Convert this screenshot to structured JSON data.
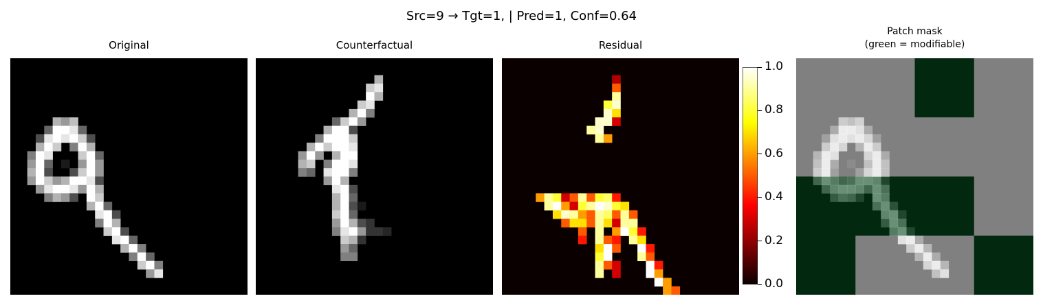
{
  "figure": {
    "suptitle": "Src=9 → Tgt=1, | Pred=1, Conf=0.64"
  },
  "panels": [
    {
      "id": "original",
      "title_lines": [
        "Original"
      ]
    },
    {
      "id": "counterfactual",
      "title_lines": [
        "Counterfactual"
      ]
    },
    {
      "id": "residual",
      "title_lines": [
        "Residual"
      ]
    },
    {
      "id": "mask",
      "title_lines": [
        "Patch mask",
        "(green = modifiable)"
      ]
    }
  ],
  "colorbar": {
    "cmap": "hot",
    "ticks": [
      "0.0",
      "0.2",
      "0.4",
      "0.6",
      "0.8",
      "1.0"
    ],
    "vmin": 0.0,
    "vmax": 1.0
  },
  "chart_data": {
    "type": "heatmap",
    "grid": [
      28,
      28
    ],
    "original": [
      [
        12,
        8,
        0.7
      ],
      [
        12,
        9,
        0.6
      ],
      [
        12,
        10,
        0.75
      ],
      [
        13,
        7,
        0.4
      ],
      [
        13,
        8,
        1
      ],
      [
        13,
        9,
        1
      ],
      [
        13,
        10,
        0.9
      ],
      [
        13,
        11,
        0.4
      ],
      [
        14,
        6,
        0.3
      ],
      [
        14,
        7,
        0.9
      ],
      [
        14,
        8,
        1
      ],
      [
        14,
        9,
        0.9
      ],
      [
        14,
        10,
        1
      ],
      [
        14,
        11,
        0.8
      ],
      [
        14,
        12,
        0.3
      ],
      [
        15,
        6,
        0.7
      ],
      [
        15,
        7,
        1
      ],
      [
        15,
        8,
        0.8
      ],
      [
        15,
        10,
        0.5
      ],
      [
        15,
        11,
        1
      ],
      [
        15,
        12,
        0.7
      ],
      [
        16,
        5,
        0.5
      ],
      [
        16,
        6,
        1
      ],
      [
        16,
        7,
        0.9
      ],
      [
        16,
        11,
        0.8
      ],
      [
        16,
        12,
        1
      ],
      [
        16,
        13,
        0.4
      ],
      [
        17,
        5,
        0.6
      ],
      [
        17,
        6,
        1
      ],
      [
        17,
        7,
        0.4
      ],
      [
        17,
        9,
        0.1
      ],
      [
        17,
        11,
        0.6
      ],
      [
        17,
        12,
        1
      ],
      [
        17,
        13,
        0.6
      ],
      [
        18,
        5,
        0.7
      ],
      [
        18,
        6,
        1
      ],
      [
        18,
        7,
        0.3
      ],
      [
        18,
        10,
        0.3
      ],
      [
        18,
        11,
        0.8
      ],
      [
        18,
        12,
        1
      ],
      [
        18,
        13,
        0.6
      ],
      [
        19,
        5,
        0.6
      ],
      [
        19,
        6,
        1
      ],
      [
        19,
        7,
        0.8
      ],
      [
        19,
        8,
        0.6
      ],
      [
        19,
        9,
        0.7
      ],
      [
        19,
        10,
        1
      ],
      [
        19,
        11,
        1
      ],
      [
        19,
        12,
        0.9
      ],
      [
        19,
        13,
        0.3
      ],
      [
        20,
        6,
        0.6
      ],
      [
        20,
        7,
        0.9
      ],
      [
        20,
        8,
        1
      ],
      [
        20,
        9,
        1
      ],
      [
        20,
        10,
        0.9
      ],
      [
        20,
        11,
        0.6
      ],
      [
        20,
        12,
        1
      ],
      [
        20,
        13,
        0.7
      ],
      [
        21,
        7,
        0.5
      ],
      [
        21,
        8,
        0.7
      ],
      [
        21,
        9,
        0.6
      ],
      [
        21,
        10,
        0.3
      ],
      [
        21,
        12,
        1
      ],
      [
        21,
        13,
        0.8
      ],
      [
        22,
        12,
        0.7
      ],
      [
        22,
        13,
        1
      ],
      [
        22,
        14,
        0.4
      ],
      [
        23,
        13,
        0.9
      ],
      [
        23,
        14,
        1
      ],
      [
        23,
        15,
        0.3
      ],
      [
        24,
        13,
        0.5
      ],
      [
        24,
        14,
        1
      ],
      [
        24,
        15,
        0.7
      ],
      [
        25,
        14,
        0.8
      ],
      [
        25,
        15,
        1
      ],
      [
        25,
        16,
        0.3
      ],
      [
        26,
        15,
        0.9
      ],
      [
        26,
        16,
        1
      ],
      [
        26,
        17,
        0.4
      ],
      [
        27,
        16,
        0.7
      ],
      [
        27,
        17,
        1
      ],
      [
        27,
        18,
        0.5
      ],
      [
        28,
        17,
        0.5
      ],
      [
        28,
        18,
        1
      ],
      [
        28,
        19,
        0.4
      ],
      [
        29,
        18,
        0.8
      ],
      [
        29,
        19,
        1
      ],
      [
        29,
        20,
        0.5
      ],
      [
        30,
        19,
        0.6
      ],
      [
        30,
        20,
        0.9
      ]
    ],
    "counterfactual": [
      [
        7,
        17,
        0.7
      ],
      [
        8,
        16,
        0.8
      ],
      [
        8,
        17,
        0.9
      ],
      [
        9,
        16,
        1
      ],
      [
        9,
        17,
        0.7
      ],
      [
        10,
        15,
        0.8
      ],
      [
        10,
        16,
        0.9
      ],
      [
        11,
        14,
        0.7
      ],
      [
        11,
        15,
        1
      ],
      [
        11,
        16,
        0.5
      ],
      [
        12,
        12,
        0.4
      ],
      [
        12,
        13,
        0.8
      ],
      [
        12,
        14,
        1
      ],
      [
        12,
        15,
        0.6
      ],
      [
        13,
        11,
        0.7
      ],
      [
        13,
        12,
        1
      ],
      [
        13,
        13,
        1
      ],
      [
        13,
        14,
        0.3
      ],
      [
        14,
        10,
        0.5
      ],
      [
        14,
        11,
        1
      ],
      [
        14,
        12,
        1
      ],
      [
        14,
        13,
        1
      ],
      [
        14,
        14,
        0.8
      ],
      [
        15,
        9,
        0.7
      ],
      [
        15,
        10,
        1
      ],
      [
        15,
        11,
        0.8
      ],
      [
        15,
        12,
        1
      ],
      [
        15,
        13,
        1
      ],
      [
        15,
        14,
        0.9
      ],
      [
        16,
        8,
        0.6
      ],
      [
        16,
        9,
        1
      ],
      [
        16,
        10,
        0.6
      ],
      [
        16,
        12,
        0.7
      ],
      [
        16,
        13,
        1
      ],
      [
        16,
        14,
        1
      ],
      [
        17,
        8,
        0.7
      ],
      [
        17,
        9,
        0.8
      ],
      [
        17,
        11,
        0.5
      ],
      [
        17,
        12,
        1
      ],
      [
        17,
        13,
        1
      ],
      [
        17,
        14,
        0.9
      ],
      [
        18,
        8,
        0.5
      ],
      [
        18,
        9,
        0.4
      ],
      [
        18,
        11,
        0.9
      ],
      [
        18,
        12,
        1
      ],
      [
        18,
        13,
        1
      ],
      [
        18,
        14,
        0.5
      ],
      [
        19,
        11,
        0.6
      ],
      [
        19,
        12,
        1
      ],
      [
        19,
        13,
        0.7
      ],
      [
        20,
        12,
        0.9
      ],
      [
        20,
        13,
        1
      ],
      [
        20,
        14,
        0.3
      ],
      [
        21,
        12,
        0.7
      ],
      [
        21,
        13,
        1
      ],
      [
        21,
        14,
        0.4
      ],
      [
        22,
        12,
        0.7
      ],
      [
        22,
        13,
        1
      ],
      [
        22,
        14,
        0.3
      ],
      [
        22,
        15,
        0.1
      ],
      [
        23,
        12,
        0.8
      ],
      [
        23,
        13,
        1
      ],
      [
        23,
        14,
        0.4
      ],
      [
        24,
        12,
        0.6
      ],
      [
        24,
        13,
        1
      ],
      [
        24,
        14,
        0.7
      ],
      [
        24,
        15,
        0.3
      ],
      [
        24,
        16,
        0.2
      ],
      [
        25,
        12,
        0.5
      ],
      [
        25,
        13,
        0.9
      ],
      [
        25,
        14,
        1
      ],
      [
        25,
        15,
        0.6
      ],
      [
        25,
        16,
        0.2
      ],
      [
        25,
        17,
        0.2
      ],
      [
        25,
        18,
        0.15
      ],
      [
        26,
        13,
        0.8
      ],
      [
        26,
        14,
        0.7
      ],
      [
        26,
        15,
        0.2
      ],
      [
        27,
        13,
        0.6
      ],
      [
        27,
        14,
        0.4
      ],
      [
        28,
        13,
        0.5
      ],
      [
        28,
        14,
        0.5
      ]
    ],
    "residual": [
      [
        7,
        16,
        0.25
      ],
      [
        8,
        16,
        0.5
      ],
      [
        9,
        16,
        0.9
      ],
      [
        10,
        15,
        0.8
      ],
      [
        10,
        16,
        0.95
      ],
      [
        11,
        15,
        0.95
      ],
      [
        11,
        16,
        0.7
      ],
      [
        12,
        14,
        0.95
      ],
      [
        12,
        15,
        0.95
      ],
      [
        12,
        16,
        0.3
      ],
      [
        13,
        13,
        0.9
      ],
      [
        13,
        14,
        0.95
      ],
      [
        14,
        14,
        0.9
      ],
      [
        14,
        15,
        0.6
      ],
      [
        21,
        7,
        0.6
      ],
      [
        21,
        8,
        0.9
      ],
      [
        21,
        9,
        0.8
      ],
      [
        21,
        10,
        0.3
      ],
      [
        21,
        11,
        0.5
      ],
      [
        21,
        12,
        0.9
      ],
      [
        21,
        13,
        0.5
      ],
      [
        21,
        14,
        0.8
      ],
      [
        21,
        15,
        0.85
      ],
      [
        21,
        16,
        0.4
      ],
      [
        22,
        8,
        0.9
      ],
      [
        22,
        9,
        1
      ],
      [
        22,
        10,
        0.6
      ],
      [
        22,
        11,
        0.3
      ],
      [
        22,
        12,
        0.8
      ],
      [
        22,
        13,
        0.9
      ],
      [
        22,
        14,
        1
      ],
      [
        22,
        15,
        0.95
      ],
      [
        22,
        16,
        0.8
      ],
      [
        22,
        17,
        0.7
      ],
      [
        23,
        9,
        0.7
      ],
      [
        23,
        10,
        0.95
      ],
      [
        23,
        11,
        0.9
      ],
      [
        23,
        12,
        0.6
      ],
      [
        23,
        13,
        0.5
      ],
      [
        23,
        14,
        0.9
      ],
      [
        23,
        15,
        0.85
      ],
      [
        23,
        16,
        0.5
      ],
      [
        23,
        17,
        0.9
      ],
      [
        23,
        18,
        0.5
      ],
      [
        24,
        10,
        0.5
      ],
      [
        24,
        11,
        0.7
      ],
      [
        24,
        12,
        0.7
      ],
      [
        24,
        13,
        0.5
      ],
      [
        24,
        14,
        0.9
      ],
      [
        24,
        15,
        0.7
      ],
      [
        24,
        16,
        0.3
      ],
      [
        24,
        17,
        0.9
      ],
      [
        24,
        18,
        0.9
      ],
      [
        25,
        12,
        0.5
      ],
      [
        25,
        14,
        0.9
      ],
      [
        25,
        16,
        0.6
      ],
      [
        25,
        17,
        1
      ],
      [
        25,
        18,
        0.8
      ],
      [
        25,
        19,
        0.4
      ],
      [
        26,
        12,
        0.4
      ],
      [
        26,
        14,
        0.9
      ],
      [
        26,
        15,
        0.5
      ],
      [
        26,
        16,
        0.4
      ],
      [
        26,
        18,
        0.9
      ],
      [
        26,
        19,
        0.7
      ],
      [
        27,
        14,
        0.7
      ],
      [
        27,
        15,
        1
      ],
      [
        27,
        16,
        0.5
      ],
      [
        27,
        19,
        1
      ],
      [
        27,
        20,
        0.4
      ],
      [
        28,
        14,
        0.8
      ],
      [
        28,
        15,
        1
      ],
      [
        28,
        19,
        0.9
      ],
      [
        28,
        20,
        0.5
      ],
      [
        29,
        14,
        0.9
      ],
      [
        29,
        15,
        0.5
      ],
      [
        29,
        16,
        0.3
      ],
      [
        29,
        20,
        1
      ],
      [
        29,
        21,
        0.4
      ],
      [
        30,
        14,
        0.9
      ],
      [
        30,
        16,
        0.3
      ],
      [
        30,
        20,
        1
      ],
      [
        30,
        21,
        0.6
      ],
      [
        31,
        21,
        1
      ],
      [
        31,
        22,
        0.6
      ],
      [
        32,
        22,
        0.6
      ],
      [
        32,
        23,
        0.5
      ]
    ],
    "mask_layout": [
      [
        "gray",
        "gray",
        "green",
        "gray"
      ],
      [
        "gray",
        "gray",
        "gray",
        "gray"
      ],
      [
        "green",
        "green",
        "green",
        "gray"
      ],
      [
        "green",
        "gray",
        "gray",
        "green"
      ]
    ],
    "mask_colors": {
      "gray": "#808080",
      "green": "#02280f"
    }
  }
}
